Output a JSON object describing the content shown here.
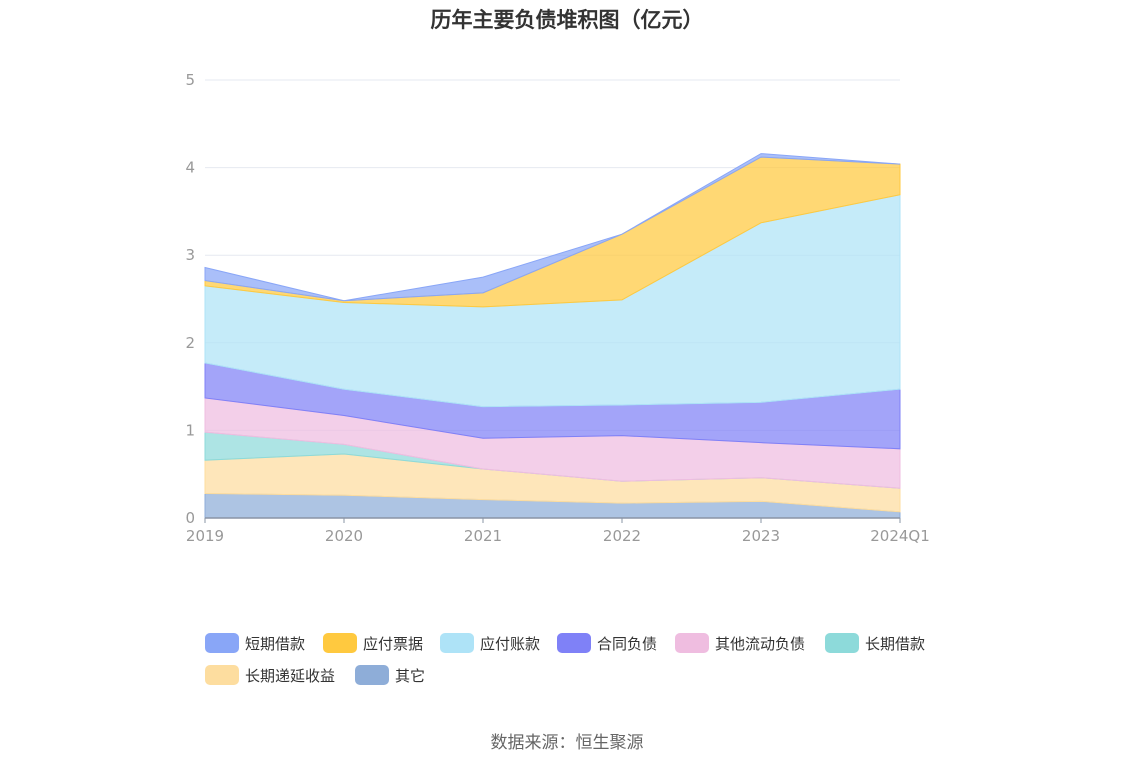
{
  "title": "历年主要负债堆积图（亿元）",
  "source": "数据来源：恒生聚源",
  "chart_data": {
    "type": "area",
    "stacked": true,
    "categories": [
      "2019",
      "2020",
      "2021",
      "2022",
      "2023",
      "2024Q1"
    ],
    "ylim": [
      0,
      5
    ],
    "yticks": [
      0,
      1,
      2,
      3,
      4,
      5
    ],
    "grid": true,
    "legend_position": "bottom",
    "series": [
      {
        "name": "其它",
        "color": "#8eadd8",
        "values": [
          0.28,
          0.26,
          0.21,
          0.17,
          0.19,
          0.07
        ]
      },
      {
        "name": "长期递延收益",
        "color": "#fddd9f",
        "values": [
          0.38,
          0.47,
          0.35,
          0.25,
          0.27,
          0.27
        ]
      },
      {
        "name": "长期借款",
        "color": "#8ddada",
        "values": [
          0.32,
          0.11,
          0.0,
          0.0,
          0.0,
          0.0
        ]
      },
      {
        "name": "其他流动负债",
        "color": "#efbde0",
        "values": [
          0.39,
          0.33,
          0.35,
          0.52,
          0.4,
          0.45
        ]
      },
      {
        "name": "合同负债",
        "color": "#7f81f7",
        "values": [
          0.4,
          0.3,
          0.36,
          0.35,
          0.46,
          0.68
        ]
      },
      {
        "name": "应付账款",
        "color": "#aee3f7",
        "values": [
          0.88,
          0.99,
          1.14,
          1.2,
          2.05,
          2.22
        ]
      },
      {
        "name": "应付票据",
        "color": "#ffc93f",
        "values": [
          0.06,
          0.02,
          0.16,
          0.75,
          0.75,
          0.35
        ]
      },
      {
        "name": "短期借款",
        "color": "#89a6f7",
        "values": [
          0.15,
          0.0,
          0.18,
          0.0,
          0.04,
          0.0
        ]
      }
    ]
  },
  "legend": [
    {
      "name": "短期借款",
      "color": "#89a6f7"
    },
    {
      "name": "应付票据",
      "color": "#ffc93f"
    },
    {
      "name": "应付账款",
      "color": "#aee3f7"
    },
    {
      "name": "合同负债",
      "color": "#7f81f7"
    },
    {
      "name": "其他流动负债",
      "color": "#efbde0"
    },
    {
      "name": "长期借款",
      "color": "#8ddada"
    },
    {
      "name": "长期递延收益",
      "color": "#fddd9f"
    },
    {
      "name": "其它",
      "color": "#8eadd8"
    }
  ]
}
